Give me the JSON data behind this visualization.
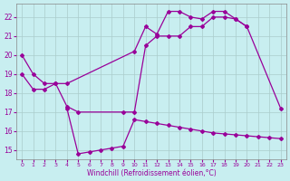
{
  "xlabel": "Windchill (Refroidissement éolien,°C)",
  "bg_color": "#c8eef0",
  "line_color": "#990099",
  "grid_color": "#aacccc",
  "xlim": [
    -0.5,
    23.5
  ],
  "ylim": [
    14.5,
    22.7
  ],
  "xticks": [
    0,
    1,
    2,
    3,
    4,
    5,
    6,
    7,
    8,
    9,
    10,
    11,
    12,
    13,
    14,
    15,
    16,
    17,
    18,
    19,
    20,
    21,
    22,
    23
  ],
  "yticks": [
    15,
    16,
    17,
    18,
    19,
    20,
    21,
    22
  ],
  "line1": {
    "x": [
      0,
      1,
      2,
      3,
      4,
      10,
      11,
      12,
      13,
      14,
      15,
      16,
      17,
      18,
      19,
      20
    ],
    "y": [
      20,
      19,
      18.5,
      18.5,
      18.5,
      20.2,
      21.5,
      21.1,
      22.3,
      22.3,
      22.0,
      21.9,
      22.3,
      22.3,
      21.9,
      21.5
    ]
  },
  "line2": {
    "x": [
      0,
      1,
      2,
      3,
      4,
      5,
      9,
      10,
      11,
      12,
      13,
      14,
      15,
      16,
      17,
      18,
      19,
      20,
      23
    ],
    "y": [
      19,
      18.2,
      18.2,
      18.5,
      17.3,
      17.0,
      17.0,
      17.0,
      20.5,
      21.0,
      21.0,
      21.0,
      21.5,
      21.5,
      22.0,
      22.0,
      21.9,
      21.5,
      17.2
    ]
  },
  "line3": {
    "x": [
      4,
      5,
      6,
      7,
      8,
      9,
      10,
      11,
      12,
      13,
      14,
      15,
      16,
      17,
      18,
      19,
      20,
      21,
      22,
      23
    ],
    "y": [
      17.2,
      14.8,
      14.9,
      15.0,
      15.1,
      15.2,
      16.6,
      16.5,
      16.4,
      16.3,
      16.2,
      16.1,
      16.0,
      15.9,
      15.85,
      15.8,
      15.75,
      15.7,
      15.65,
      15.6
    ]
  }
}
